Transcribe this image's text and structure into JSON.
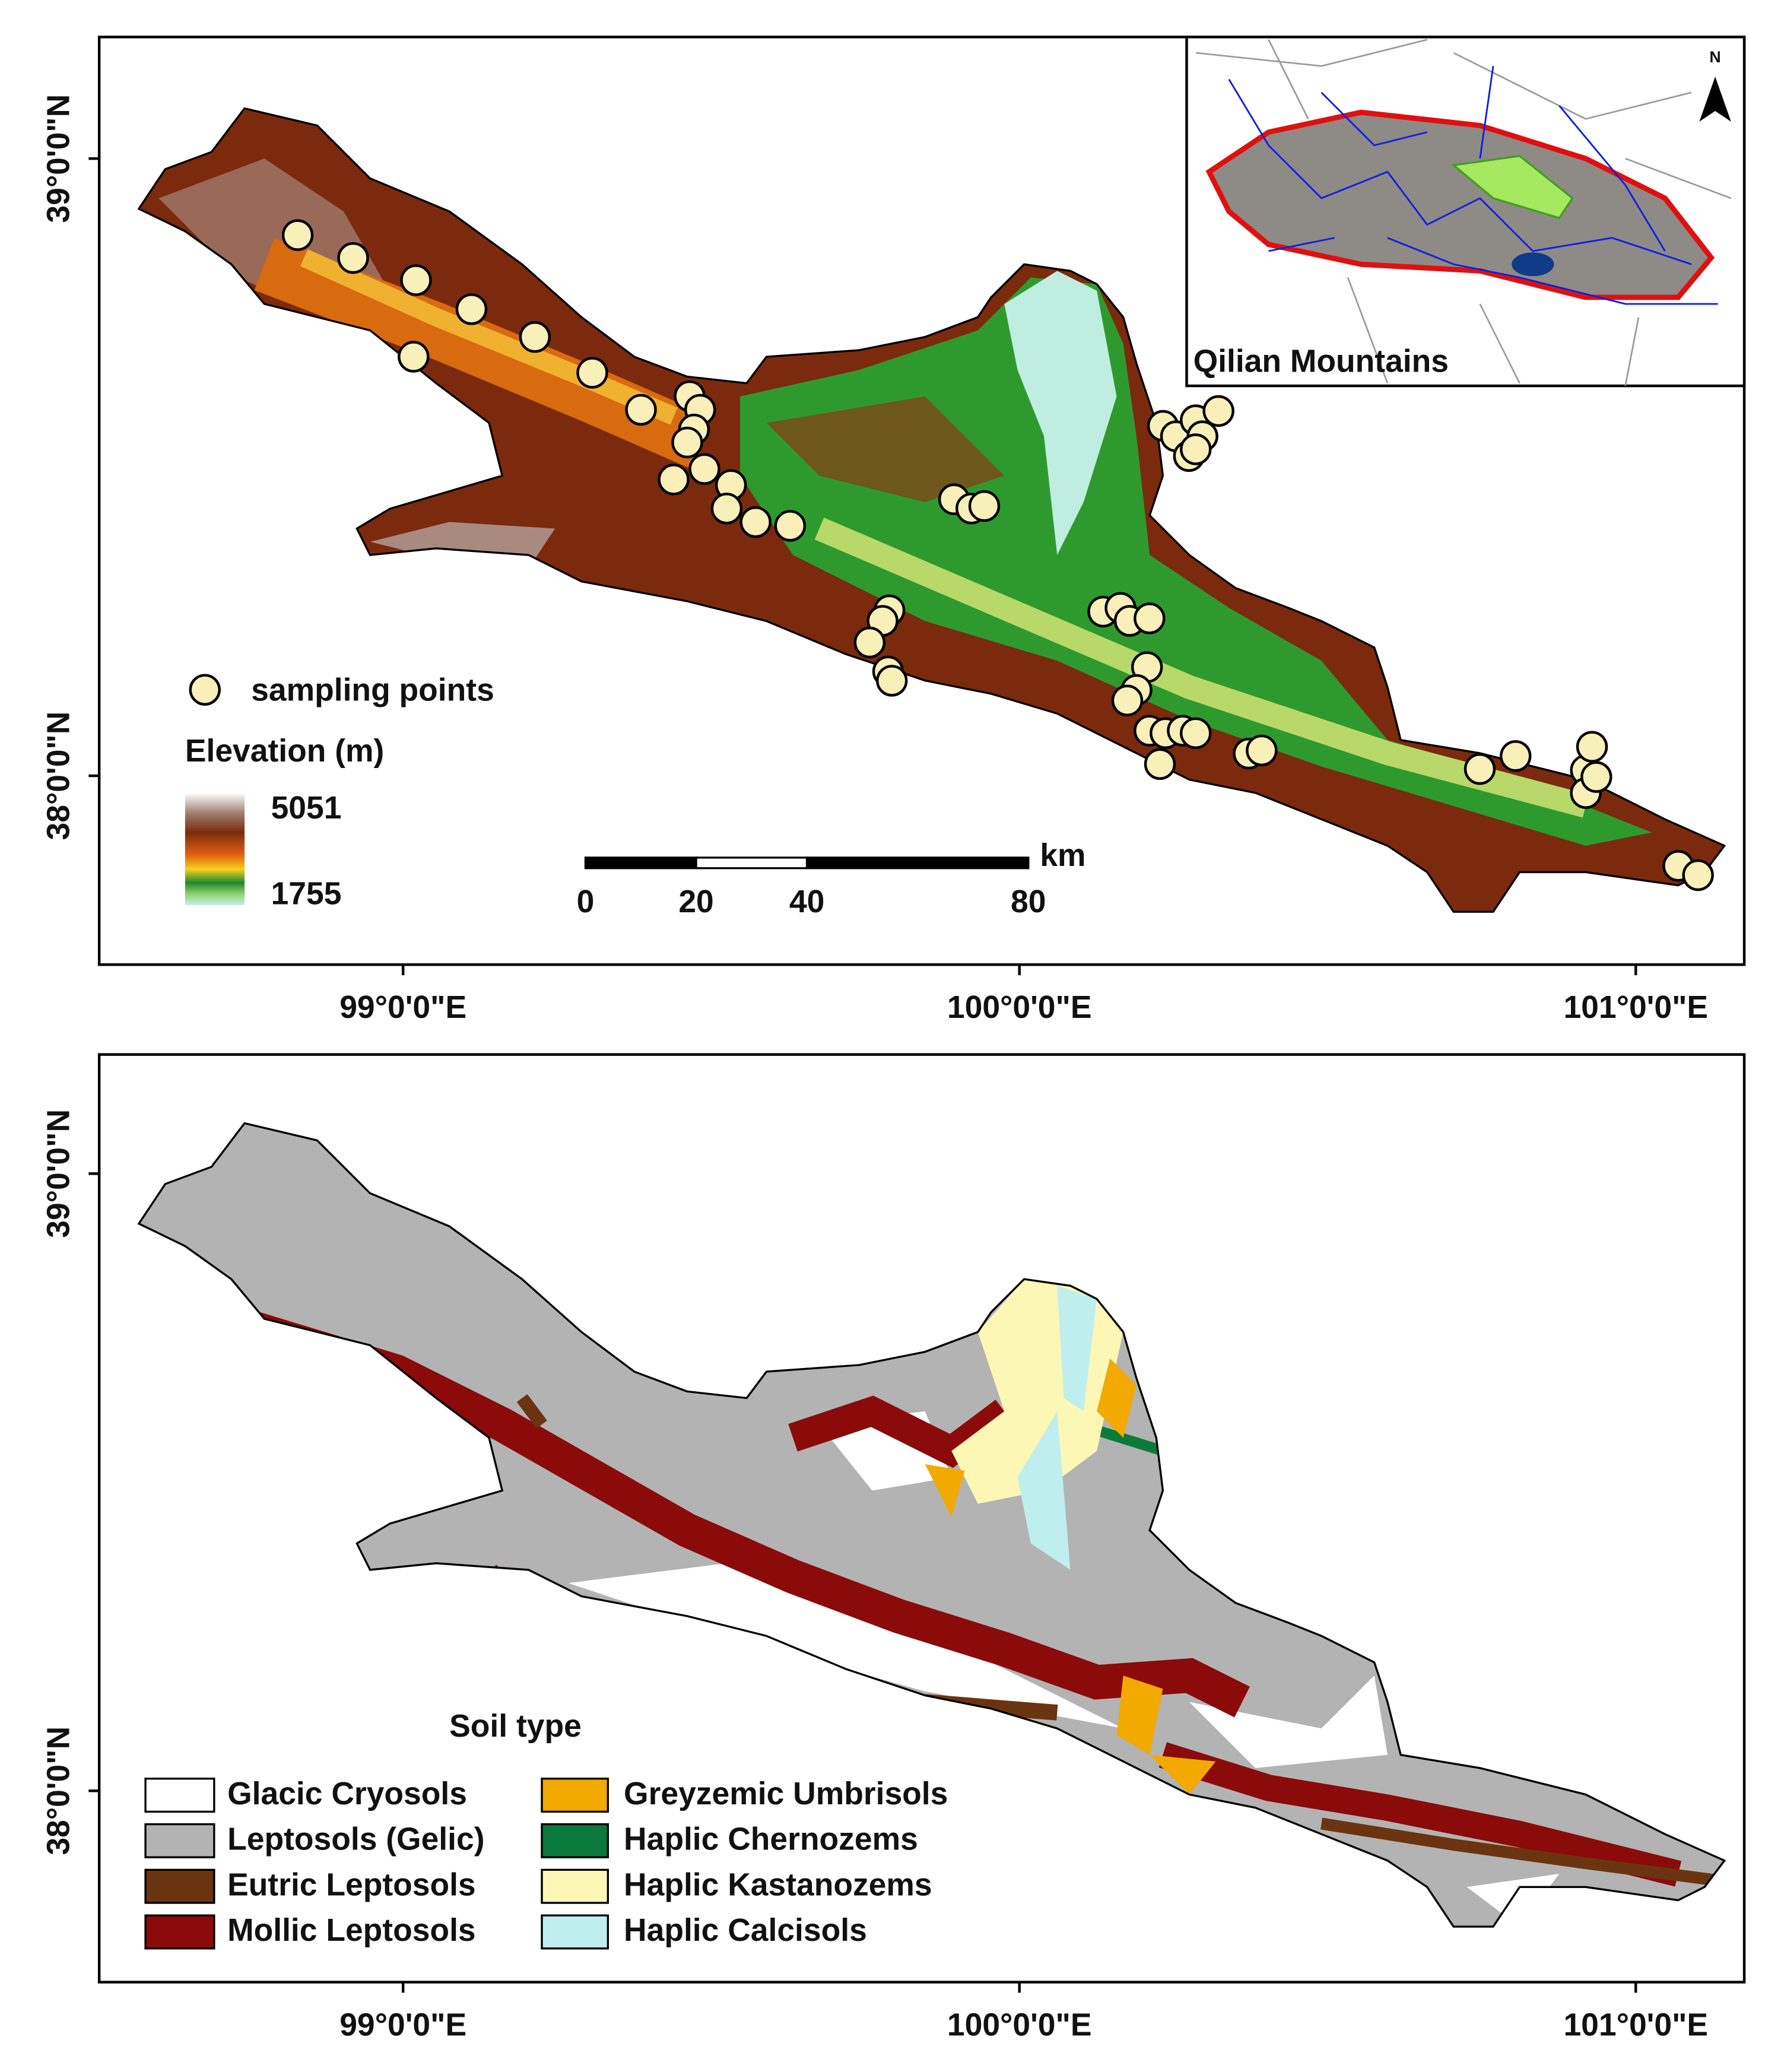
{
  "elevation_map": {
    "xlim": [
      98.507,
      101.176
    ],
    "ylim": [
      37.694,
      39.197
    ],
    "xticks": [
      {
        "value": 99,
        "label": "99°0'0\"E"
      },
      {
        "value": 100,
        "label": "100°0'0\"E"
      },
      {
        "value": 101,
        "label": "101°0'0\"E"
      }
    ],
    "yticks": [
      {
        "value": 39,
        "label": "39°0'0\"N"
      },
      {
        "value": 38,
        "label": "38°0'0\"N"
      }
    ],
    "points_label": "sampling points",
    "elevation_title": "Elevation (m)",
    "elevation_max": 5051,
    "elevation_min": 1755,
    "scale_bar": {
      "unit": "km",
      "ticks": [
        0,
        20,
        40,
        80
      ]
    },
    "inset": {
      "title": "Qilian Mountains",
      "north": "N"
    },
    "sampling_points": {
      "lon": [
        98.829,
        98.919,
        99.021,
        99.111,
        99.214,
        99.017,
        99.307,
        99.386,
        99.465,
        99.482,
        99.472,
        99.461,
        99.489,
        99.439,
        99.532,
        99.525,
        99.572,
        99.628,
        99.789,
        99.778,
        99.757,
        99.787,
        99.793,
        99.894,
        99.922,
        99.943,
        100.233,
        100.254,
        100.286,
        100.323,
        100.297,
        100.275,
        100.286,
        100.136,
        100.164,
        100.179,
        100.211,
        100.207,
        100.19,
        100.175,
        100.211,
        100.237,
        100.265,
        100.286,
        100.228,
        100.372,
        100.393,
        100.747,
        100.805,
        100.919,
        100.929,
        100.919,
        100.936,
        101.069,
        101.101
      ],
      "lat": [
        38.876,
        38.839,
        38.803,
        38.756,
        38.711,
        38.679,
        38.653,
        38.593,
        38.615,
        38.593,
        38.561,
        38.54,
        38.497,
        38.48,
        38.471,
        38.433,
        38.411,
        38.405,
        38.268,
        38.251,
        38.216,
        38.169,
        38.154,
        38.448,
        38.433,
        38.437,
        38.567,
        38.55,
        38.576,
        38.591,
        38.55,
        38.518,
        38.529,
        38.266,
        38.272,
        38.251,
        38.255,
        38.176,
        38.139,
        38.122,
        38.073,
        38.069,
        38.073,
        38.069,
        38.019,
        38.036,
        38.041,
        38.011,
        38.032,
        38.009,
        38.047,
        37.972,
        37.998,
        37.854,
        37.839
      ]
    }
  },
  "soil_map": {
    "xlim": [
      98.507,
      101.176
    ],
    "ylim": [
      37.69,
      39.193
    ],
    "xticks": [
      {
        "value": 99,
        "label": "99°0'0\"E"
      },
      {
        "value": 100,
        "label": "100°0'0\"E"
      },
      {
        "value": 101,
        "label": "101°0'0\"E"
      }
    ],
    "yticks": [
      {
        "value": 39,
        "label": "39°0'0\"N"
      },
      {
        "value": 38,
        "label": "38°0'0\"N"
      }
    ],
    "legend_title": "Soil type",
    "classes": [
      {
        "name": "Glacic Cryosols",
        "color": "#ffffff"
      },
      {
        "name": "Leptosols (Gelic)",
        "color": "#b3b3b3"
      },
      {
        "name": "Eutric Leptosols",
        "color": "#6b3410"
      },
      {
        "name": "Mollic Leptosols",
        "color": "#8b0a0a"
      },
      {
        "name": "Greyzemic Umbrisols",
        "color": "#f2a900"
      },
      {
        "name": "Haplic Chernozems",
        "color": "#0a7a3a"
      },
      {
        "name": "Haplic Kastanozems",
        "color": "#fdf7b5"
      },
      {
        "name": "Haplic Calcisols",
        "color": "#bfeeee"
      }
    ]
  }
}
